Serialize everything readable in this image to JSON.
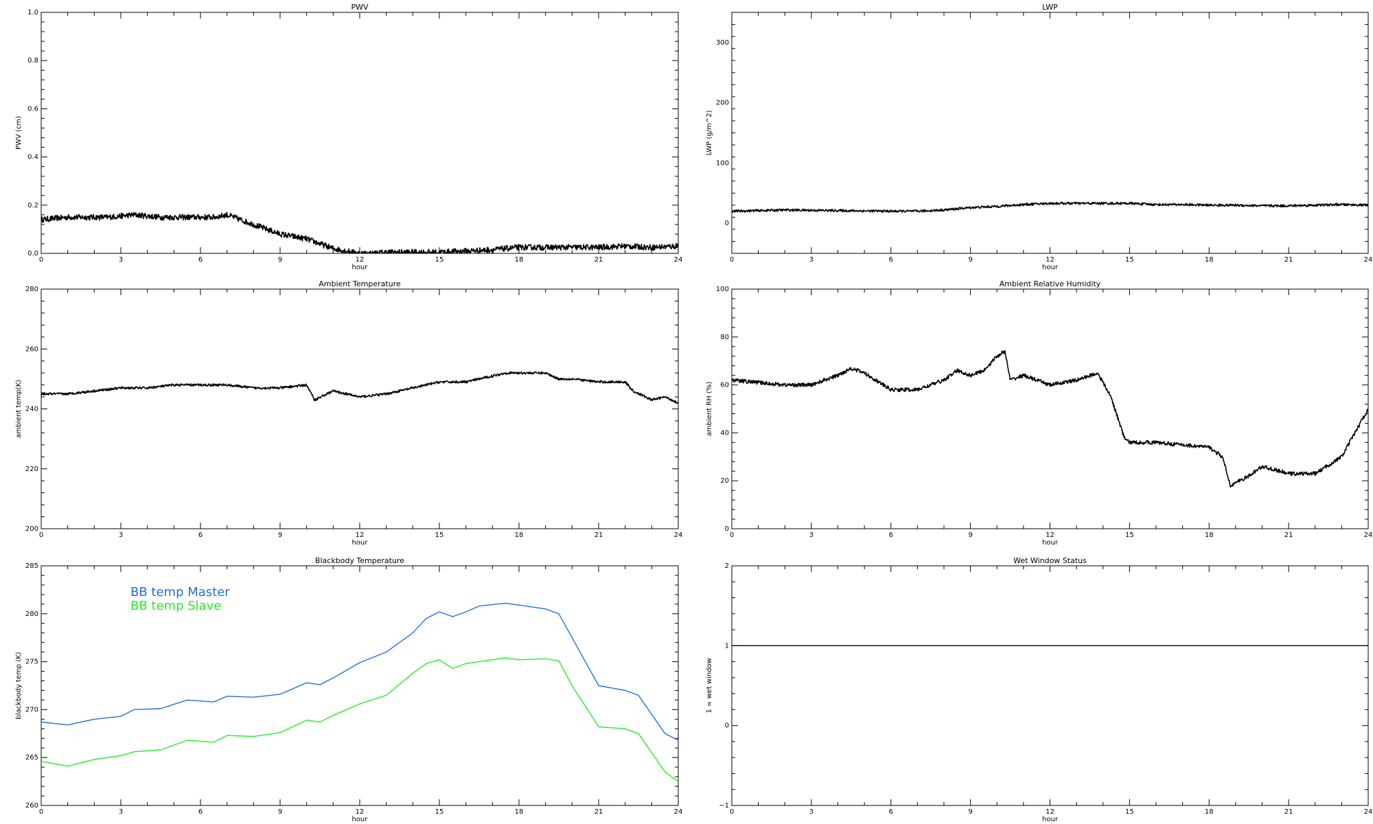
{
  "chart_data": [
    {
      "type": "line",
      "title": "PWV",
      "xlabel": "hour",
      "ylabel": "PWV (cm)",
      "xlim": [
        0,
        24
      ],
      "ylim": [
        0,
        1.0
      ],
      "xticks": [
        "0",
        "3",
        "6",
        "9",
        "12",
        "15",
        "18",
        "21",
        "24"
      ],
      "yticks": [
        "0.0",
        "0.2",
        "0.4",
        "0.6",
        "0.8",
        "1.0"
      ],
      "noise": 0.012,
      "series": [
        {
          "color": "#000000",
          "x": [
            0,
            1,
            1.5,
            2.5,
            3.5,
            4.5,
            5.5,
            6.5,
            7,
            7.5,
            8,
            8.5,
            9,
            9.5,
            10,
            10.5,
            11,
            11.5,
            12,
            12.5,
            13,
            14,
            15,
            16,
            17,
            18,
            19,
            20,
            21,
            22,
            23,
            24
          ],
          "y": [
            0.14,
            0.15,
            0.15,
            0.15,
            0.16,
            0.15,
            0.15,
            0.15,
            0.16,
            0.14,
            0.12,
            0.1,
            0.08,
            0.07,
            0.06,
            0.04,
            0.02,
            0.01,
            0.0,
            0.0,
            0.005,
            0.005,
            0.005,
            0.01,
            0.015,
            0.025,
            0.025,
            0.025,
            0.025,
            0.03,
            0.025,
            0.03
          ]
        }
      ]
    },
    {
      "type": "line",
      "title": "LWP",
      "xlabel": "hour",
      "ylabel": "LWP (g/m^2)",
      "xlim": [
        0,
        24
      ],
      "ylim": [
        -50,
        350
      ],
      "xticks": [
        "0",
        "3",
        "6",
        "9",
        "12",
        "15",
        "18",
        "21",
        "24"
      ],
      "yticks": [
        "0",
        "100",
        "200",
        "300"
      ],
      "ytick_values": [
        0,
        100,
        200,
        300
      ],
      "noise": 2,
      "series": [
        {
          "color": "#000000",
          "x": [
            0,
            2,
            4,
            6,
            7,
            8,
            9,
            10,
            11,
            12,
            13,
            14,
            15,
            16,
            17,
            18,
            19,
            20,
            21,
            22,
            23,
            24
          ],
          "y": [
            20,
            22,
            21,
            20,
            20,
            22,
            26,
            28,
            31,
            33,
            33,
            33,
            33,
            31,
            31,
            30,
            30,
            29,
            29,
            30,
            31,
            30
          ]
        }
      ]
    },
    {
      "type": "line",
      "title": "Ambient Temperature",
      "xlabel": "hour",
      "ylabel": "ambient temp(K)",
      "xlim": [
        0,
        24
      ],
      "ylim": [
        200,
        280
      ],
      "xticks": [
        "0",
        "3",
        "6",
        "9",
        "12",
        "15",
        "18",
        "21",
        "24"
      ],
      "yticks": [
        "200",
        "220",
        "240",
        "260",
        "280"
      ],
      "ytick_values": [
        200,
        220,
        240,
        260,
        280
      ],
      "noise": 0.4,
      "series": [
        {
          "color": "#000000",
          "x": [
            0,
            1,
            2,
            3,
            4,
            5,
            6,
            7,
            8,
            9,
            10,
            10.3,
            11,
            12,
            13,
            14,
            15,
            16,
            17,
            17.5,
            18,
            19,
            19.5,
            20,
            21,
            22,
            22.3,
            23,
            23.5,
            24
          ],
          "y": [
            245,
            245,
            246,
            247,
            247,
            248,
            248,
            248,
            247,
            247,
            248,
            243,
            246,
            244,
            245,
            247,
            249,
            249,
            251,
            252,
            252,
            252,
            250,
            250,
            249,
            249,
            246,
            243,
            244,
            242
          ]
        }
      ]
    },
    {
      "type": "line",
      "title": "Ambient Relative Humidity",
      "xlabel": "hour",
      "ylabel": "ambient RH (%)",
      "xlim": [
        0,
        24
      ],
      "ylim": [
        0,
        100
      ],
      "xticks": [
        "0",
        "3",
        "6",
        "9",
        "12",
        "15",
        "18",
        "21",
        "24"
      ],
      "yticks": [
        "0",
        "20",
        "40",
        "60",
        "80",
        "100"
      ],
      "ytick_values": [
        0,
        20,
        40,
        60,
        80,
        100
      ],
      "noise": 0.8,
      "series": [
        {
          "color": "#000000",
          "x": [
            0,
            1,
            2,
            3,
            4,
            4.5,
            5,
            6,
            7,
            8,
            8.5,
            9,
            9.5,
            10,
            10.3,
            10.5,
            11,
            12,
            13,
            13.8,
            14.3,
            14.8,
            15,
            16,
            17,
            18,
            18.5,
            18.8,
            19.5,
            20,
            21,
            22,
            23,
            23.5,
            24
          ],
          "y": [
            62,
            61,
            60,
            60,
            64,
            67,
            65,
            58,
            58,
            62,
            66,
            64,
            66,
            72,
            74,
            62,
            64,
            60,
            62,
            65,
            55,
            38,
            36,
            36,
            35,
            34,
            30,
            18,
            22,
            26,
            23,
            23,
            30,
            40,
            50
          ]
        }
      ]
    },
    {
      "type": "line",
      "title": "Blackbody Temperature",
      "xlabel": "hour",
      "ylabel": "blackbody temp (K)",
      "xlim": [
        0,
        24
      ],
      "ylim": [
        260,
        285
      ],
      "xticks": [
        "0",
        "3",
        "6",
        "9",
        "12",
        "15",
        "18",
        "21",
        "24"
      ],
      "yticks": [
        "260",
        "265",
        "270",
        "275",
        "280",
        "285"
      ],
      "ytick_values": [
        260,
        265,
        270,
        275,
        280,
        285
      ],
      "noise": 0,
      "legend": [
        "BB temp Master",
        "BB temp Slave"
      ],
      "series": [
        {
          "name": "BB temp Master",
          "color": "#1f6fe0",
          "x": [
            0,
            1,
            2,
            3,
            3.5,
            4.5,
            5.5,
            6.5,
            7,
            8,
            9,
            10,
            10.5,
            11,
            12,
            13,
            14,
            14.5,
            15,
            15.5,
            16,
            16.5,
            17.5,
            18,
            19,
            19.5,
            20,
            21,
            22,
            22.5,
            23,
            23.5,
            24
          ],
          "y": [
            268.7,
            268.4,
            269.0,
            269.3,
            270.0,
            270.1,
            271.0,
            270.8,
            271.4,
            271.3,
            271.6,
            272.8,
            272.6,
            273.3,
            274.9,
            276.0,
            278.0,
            279.5,
            280.2,
            279.7,
            280.2,
            280.8,
            281.1,
            280.9,
            280.5,
            280.0,
            277.5,
            272.5,
            272.0,
            271.5,
            269.5,
            267.5,
            266.8
          ]
        },
        {
          "name": "BB temp Slave",
          "color": "#22ee22",
          "x": [
            0,
            1,
            2,
            3,
            3.5,
            4.5,
            5.5,
            6.5,
            7,
            8,
            9,
            10,
            10.5,
            11,
            12,
            13,
            14,
            14.5,
            15,
            15.5,
            16,
            16.5,
            17.5,
            18,
            19,
            19.5,
            20,
            21,
            22,
            22.5,
            23,
            23.5,
            24
          ],
          "y": [
            264.6,
            264.1,
            264.8,
            265.2,
            265.6,
            265.8,
            266.8,
            266.6,
            267.3,
            267.2,
            267.6,
            268.9,
            268.7,
            269.4,
            270.6,
            271.5,
            273.8,
            274.8,
            275.2,
            274.3,
            274.8,
            275.0,
            275.4,
            275.2,
            275.3,
            275.1,
            272.5,
            268.2,
            268.0,
            267.5,
            265.5,
            263.5,
            262.5
          ]
        }
      ]
    },
    {
      "type": "line",
      "title": "Wet Window Status",
      "xlabel": "hour",
      "ylabel": "1 = wet window",
      "xlim": [
        0,
        24
      ],
      "ylim": [
        -1,
        2
      ],
      "xticks": [
        "0",
        "3",
        "6",
        "9",
        "12",
        "15",
        "18",
        "21",
        "24"
      ],
      "yticks": [
        "−1",
        "0",
        "1",
        "2"
      ],
      "ytick_values": [
        -1,
        0,
        1,
        2
      ],
      "noise": 0,
      "series": [
        {
          "color": "#000000",
          "x": [
            0,
            24
          ],
          "y": [
            1,
            1
          ]
        }
      ]
    }
  ]
}
